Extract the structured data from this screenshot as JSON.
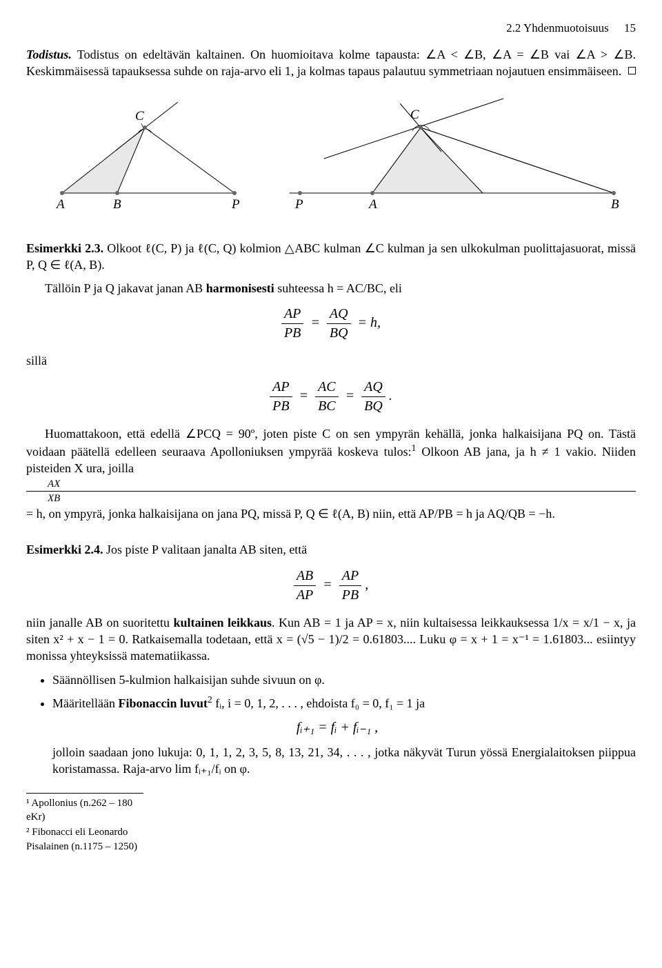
{
  "header": {
    "section": "2.2 Yhdenmuotoisuus",
    "page": "15"
  },
  "todistus": {
    "label": "Todistus.",
    "text1": "Todistus on edeltävän kaltainen. On huomioitava kolme tapausta: ∠A < ∠B, ∠A = ∠B vai ∠A > ∠B. Keskimmäisessä tapauksessa suhde on raja-arvo eli 1, ja kolmas tapaus palautuu symmetriaan nojautuen ensimmäiseen."
  },
  "figure": {
    "left": {
      "A": "A",
      "B": "B",
      "P": "P",
      "C": "C",
      "fill": "#e8e8e8",
      "stroke": "#000000",
      "dot_fill": "#666666"
    },
    "right": {
      "P": "P",
      "A": "A",
      "B": "B",
      "C": "C",
      "fill": "#e8e8e8",
      "stroke": "#000000",
      "dot_fill": "#666666"
    }
  },
  "ex23": {
    "label": "Esimerkki 2.3.",
    "text1": "Olkoot ℓ(C, P) ja ℓ(C, Q) kolmion △ABC kulman ∠C kulman ja sen ulkokulman puolittajasuorat, missä P, Q ∈ ℓ(A, B).",
    "text2": "Tällöin P ja Q jakavat janan AB harmonisesti suhteessa h = AC/BC, eli",
    "eq1_lhs_num": "AP",
    "eq1_lhs_den": "PB",
    "eq1_mid_num": "AQ",
    "eq1_mid_den": "BQ",
    "eq1_rhs": "= h,",
    "silla": "sillä",
    "eq2_a_num": "AP",
    "eq2_a_den": "PB",
    "eq2_b_num": "AC",
    "eq2_b_den": "BC",
    "eq2_c_num": "AQ",
    "eq2_c_den": "BQ",
    "eq2_end": ".",
    "text3a": "Huomattakoon, että edellä ∠PCQ = 90º, joten piste C on sen ympyrän kehällä, jonka halkaisijana PQ on. Tästä voidaan päätellä edelleen seuraava Apolloniuksen ympyrää koskeva tulos:",
    "fn1": "1",
    "text3b": " Olkoon AB jana, ja h ≠ 1 vakio. Niiden pisteiden X ura, joilla ",
    "frac_ax": "AX",
    "frac_xb": "XB",
    "text3c": " = h, on ympyrä, jonka halkaisijana on jana PQ, missä P, Q ∈ ℓ(A, B) niin, että AP/PB = h ja AQ/QB = −h."
  },
  "ex24": {
    "label": "Esimerkki 2.4.",
    "text1": "Jos piste P valitaan janalta AB siten, että",
    "eq_a_num": "AB",
    "eq_a_den": "AP",
    "eq_b_num": "AP",
    "eq_b_den": "PB",
    "eq_end": ",",
    "text2": "niin janalle AB on suoritettu kultainen leikkaus. Kun AB = 1 ja AP = x, niin kultaisessa leikkauksessa 1/x = x/1 − x, ja siten x² + x − 1 = 0. Ratkaisemalla todetaan, että x = (√5 − 1)/2 = 0.61803.... Luku φ = x + 1 = x⁻¹ = 1.61803... esiintyy monissa yhteyksissä matematiikassa."
  },
  "bullets": {
    "b1": "Säännöllisen 5-kulmion halkaisijan suhde sivuun on φ.",
    "b2a": "Määritellään Fibonaccin luvut",
    "b2fn": "2",
    "b2b": " fᵢ, i = 0, 1, 2, . . . , ehdoista f₀ = 0, f₁ = 1 ja",
    "eq": "fᵢ₊₁ = fᵢ + fᵢ₋₁ ,",
    "b2c": "jolloin saadaan jono lukuja: 0, 1, 1, 2, 3, 5, 8, 13, 21, 34, . . . , jotka näkyvät Turun yössä Energialaitoksen piippua koristamassa. Raja-arvo lim fᵢ₊₁/fᵢ on φ."
  },
  "footnotes": {
    "f1": "¹ Apollonius (n.262 – 180 eKr)",
    "f2": "² Fibonacci eli Leonardo Pisalainen (n.1175 – 1250)"
  }
}
